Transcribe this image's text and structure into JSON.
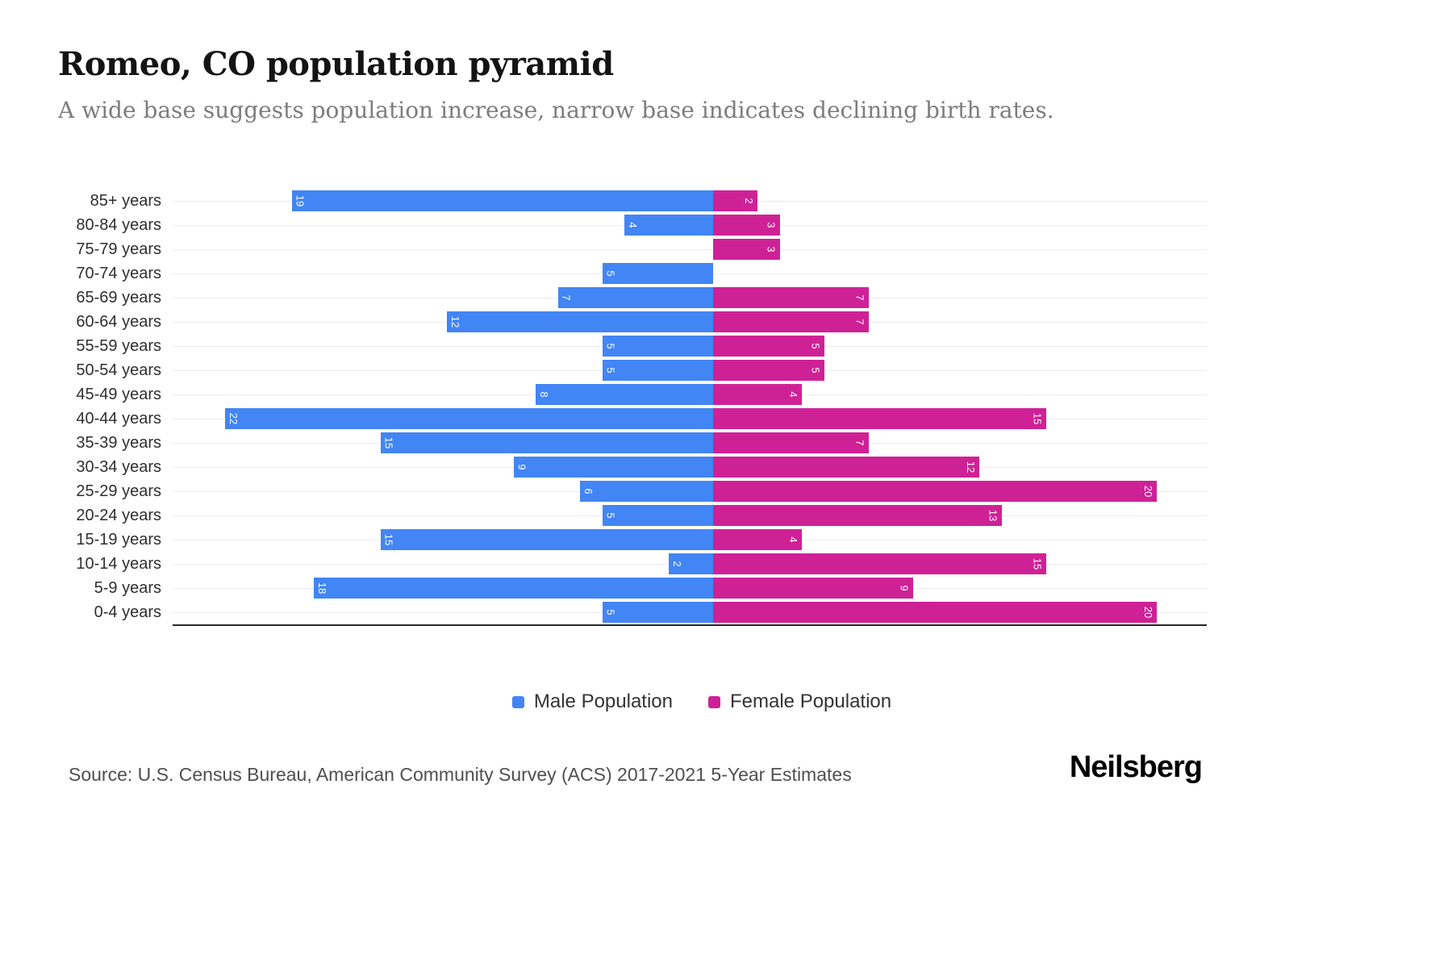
{
  "header": {
    "title": "Romeo, CO population pyramid",
    "subtitle": "A wide base suggests population increase, narrow base indicates declining birth rates."
  },
  "chart_data": {
    "type": "bar",
    "subtype": "population-pyramid",
    "orientation": "horizontal",
    "categories": [
      "85+ years",
      "80-84 years",
      "75-79 years",
      "70-74 years",
      "65-69 years",
      "60-64 years",
      "55-59 years",
      "50-54 years",
      "45-49 years",
      "40-44 years",
      "35-39 years",
      "30-34 years",
      "25-29 years",
      "20-24 years",
      "15-19 years",
      "10-14 years",
      "5-9 years",
      "0-4 years"
    ],
    "series": [
      {
        "name": "Male Population",
        "side": "left",
        "color": "#4285f4",
        "values": [
          19,
          4,
          0,
          5,
          7,
          12,
          5,
          5,
          8,
          22,
          15,
          9,
          6,
          5,
          15,
          2,
          18,
          5
        ]
      },
      {
        "name": "Female Population",
        "side": "right",
        "color": "#cf2196",
        "values": [
          2,
          3,
          3,
          0,
          7,
          7,
          5,
          5,
          4,
          15,
          7,
          12,
          20,
          13,
          4,
          15,
          9,
          20
        ]
      }
    ],
    "value_axis_max_per_side": 22,
    "grid": "horizontal-light",
    "legend_position": "bottom-center",
    "data_labels": "inside-bar-ends-rotated-white"
  },
  "footer": {
    "source": "Source: U.S. Census Bureau, American Community Survey (ACS) 2017-2021 5-Year Estimates",
    "brand": "Neilsberg"
  }
}
